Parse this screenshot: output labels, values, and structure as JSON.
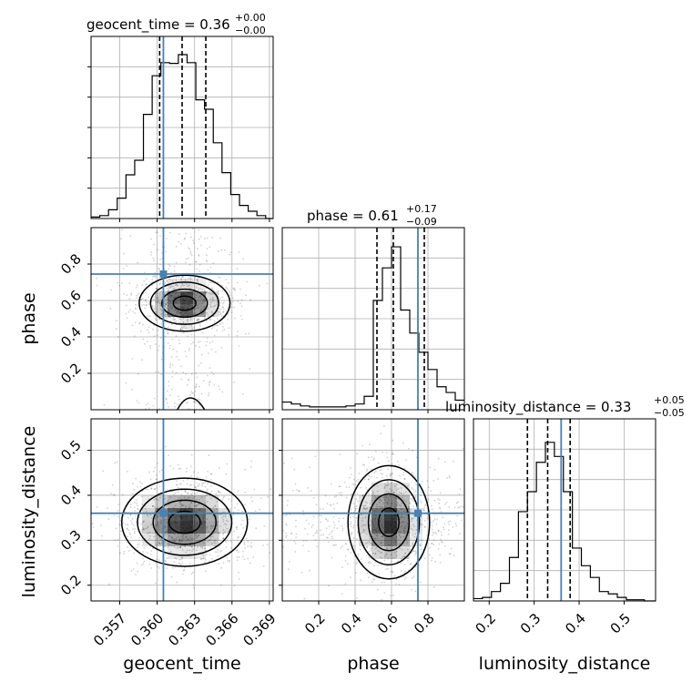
{
  "chart_data": {
    "type": "corner",
    "parameters": [
      "geocent_time",
      "phase",
      "luminosity_distance"
    ],
    "truths": {
      "geocent_time": 0.3605,
      "phase": 0.745,
      "luminosity_distance": 0.36
    },
    "truth_color": "#4682b4",
    "grid": true,
    "diagonal": [
      {
        "param": "geocent_time",
        "title_main": "geocent_time = 0.36",
        "title_sup": "+0.00",
        "title_sub": "−0.00",
        "quantiles": [
          0.3602,
          0.362,
          0.3639
        ],
        "xlim": [
          0.3547,
          0.3693
        ],
        "ymax": 0.25,
        "bin_edges": [
          0.3547,
          0.3554,
          0.3561,
          0.3568,
          0.3575,
          0.3582,
          0.3589,
          0.3596,
          0.3603,
          0.361,
          0.3617,
          0.3624,
          0.3631,
          0.3638,
          0.3645,
          0.3652,
          0.3659,
          0.3666,
          0.3673,
          0.368,
          0.3687,
          0.3693
        ],
        "counts": [
          0.002,
          0.004,
          0.012,
          0.028,
          0.06,
          0.08,
          0.143,
          0.196,
          0.214,
          0.213,
          0.225,
          0.214,
          0.163,
          0.15,
          0.104,
          0.063,
          0.033,
          0.018,
          0.01,
          0.004,
          0.0
        ]
      },
      {
        "param": "phase",
        "title_main": "phase = 0.61",
        "title_sup": "+0.17",
        "title_sub": "−0.09",
        "quantiles": [
          0.52,
          0.61,
          0.78
        ],
        "xlim": [
          0.0,
          1.0
        ],
        "ymax": 0.095,
        "bin_edges": [
          0.0,
          0.05,
          0.1,
          0.15,
          0.2,
          0.25,
          0.3,
          0.35,
          0.4,
          0.45,
          0.5,
          0.55,
          0.6,
          0.65,
          0.7,
          0.75,
          0.8,
          0.85,
          0.9,
          0.95,
          1.0
        ],
        "counts": [
          0.004,
          0.003,
          0.002,
          0.0015,
          0.0015,
          0.0015,
          0.0015,
          0.002,
          0.003,
          0.007,
          0.057,
          0.074,
          0.085,
          0.052,
          0.04,
          0.03,
          0.021,
          0.012,
          0.009,
          0.005
        ]
      },
      {
        "param": "luminosity_distance",
        "title_main": "luminosity_distance = 0.33",
        "title_sup": "+0.05",
        "title_sub": "−0.05",
        "quantiles": [
          0.285,
          0.33,
          0.38
        ],
        "xlim": [
          0.165,
          0.57
        ],
        "ymax": 0.155,
        "bin_edges": [
          0.165,
          0.185,
          0.205,
          0.225,
          0.245,
          0.265,
          0.285,
          0.305,
          0.325,
          0.345,
          0.365,
          0.385,
          0.405,
          0.425,
          0.445,
          0.465,
          0.485,
          0.505,
          0.525,
          0.545,
          0.57
        ],
        "counts": [
          0.002,
          0.003,
          0.008,
          0.015,
          0.037,
          0.076,
          0.093,
          0.118,
          0.135,
          0.123,
          0.093,
          0.045,
          0.03,
          0.02,
          0.008,
          0.006,
          0.003,
          0.001,
          0.001,
          0.0
        ]
      }
    ],
    "pairs": [
      {
        "x": "geocent_time",
        "y": "phase",
        "center": [
          0.3622,
          0.585
        ],
        "spread": [
          0.0013,
          0.055
        ],
        "xlim": [
          0.3547,
          0.3693
        ],
        "ylim": [
          0.0,
          1.0
        ]
      },
      {
        "x": "geocent_time",
        "y": "luminosity_distance",
        "center": [
          0.3622,
          0.34
        ],
        "spread": [
          0.0018,
          0.035
        ],
        "xlim": [
          0.3547,
          0.3693
        ],
        "ylim": [
          0.165,
          0.57
        ]
      },
      {
        "x": "phase",
        "y": "luminosity_distance",
        "center": [
          0.585,
          0.34
        ],
        "spread": [
          0.08,
          0.045
        ],
        "xlim": [
          0.0,
          1.0
        ],
        "ylim": [
          0.165,
          0.57
        ]
      }
    ],
    "ticks": {
      "geocent_time": {
        "values": [
          0.357,
          0.36,
          0.363,
          0.366,
          0.369
        ],
        "labels": [
          "0.357",
          "0.360",
          "0.363",
          "0.366",
          "0.369"
        ]
      },
      "phase": {
        "values": [
          0.2,
          0.4,
          0.6,
          0.8
        ],
        "labels": [
          "0.2",
          "0.4",
          "0.6",
          "0.8"
        ]
      },
      "luminosity_distance": {
        "values": [
          0.2,
          0.3,
          0.4,
          0.5
        ],
        "labels": [
          "0.2",
          "0.3",
          "0.4",
          "0.5"
        ]
      }
    },
    "axis_labels": {
      "x": [
        "geocent_time",
        "phase",
        "luminosity_distance"
      ],
      "y": [
        "phase",
        "luminosity_distance"
      ]
    }
  }
}
